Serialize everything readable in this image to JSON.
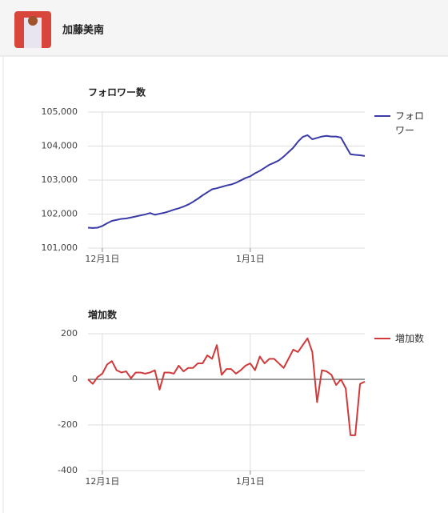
{
  "header": {
    "name": "加藤美南"
  },
  "chart_data": [
    {
      "type": "line",
      "title": "フォロワー数",
      "categories": [
        null,
        null,
        null,
        "12月1日",
        null,
        null,
        null,
        null,
        null,
        null,
        null,
        null,
        null,
        null,
        null,
        null,
        null,
        null,
        null,
        null,
        null,
        null,
        null,
        null,
        null,
        null,
        null,
        null,
        null,
        null,
        null,
        null,
        null,
        null,
        "1月1日",
        null,
        null,
        null,
        null,
        null,
        null,
        null,
        null,
        null,
        null,
        null,
        null,
        null,
        null,
        null,
        null,
        null,
        null,
        null,
        null,
        null,
        null,
        null,
        null
      ],
      "series": [
        {
          "name": "フォロワー",
          "color": "#3a3aa8",
          "values": [
            101600,
            101590,
            101600,
            101650,
            101730,
            101800,
            101830,
            101860,
            101870,
            101900,
            101930,
            101960,
            101990,
            102030,
            101980,
            102010,
            102040,
            102080,
            102130,
            102170,
            102220,
            102280,
            102360,
            102450,
            102550,
            102640,
            102730,
            102760,
            102800,
            102840,
            102870,
            102920,
            102990,
            103060,
            103110,
            103200,
            103270,
            103360,
            103450,
            103510,
            103580,
            103690,
            103820,
            103950,
            104130,
            104270,
            104320,
            104200,
            104240,
            104280,
            104300,
            104280,
            104280,
            104250,
            104000,
            103760,
            103740,
            103730,
            103710
          ]
        }
      ],
      "ylim": [
        101000,
        105000
      ],
      "yticks": [
        {
          "value": 101000,
          "label": "101,000"
        },
        {
          "value": 102000,
          "label": "102,000"
        },
        {
          "value": 103000,
          "label": "103,000"
        },
        {
          "value": 104000,
          "label": "104,000"
        },
        {
          "value": 105000,
          "label": "105,000"
        }
      ],
      "grid": true
    },
    {
      "type": "line",
      "title": "増加数",
      "categories": [
        null,
        null,
        null,
        "12月1日",
        null,
        null,
        null,
        null,
        null,
        null,
        null,
        null,
        null,
        null,
        null,
        null,
        null,
        null,
        null,
        null,
        null,
        null,
        null,
        null,
        null,
        null,
        null,
        null,
        null,
        null,
        null,
        null,
        null,
        null,
        "1月1日",
        null,
        null,
        null,
        null,
        null,
        null,
        null,
        null,
        null,
        null,
        null,
        null,
        null,
        null,
        null,
        null,
        null,
        null,
        null,
        null,
        null,
        null,
        null,
        null
      ],
      "series": [
        {
          "name": "増加数",
          "color": "#d03a3a",
          "values": [
            0,
            -20,
            10,
            25,
            65,
            80,
            40,
            30,
            35,
            5,
            30,
            30,
            25,
            30,
            40,
            -45,
            30,
            30,
            25,
            60,
            35,
            50,
            50,
            70,
            70,
            105,
            90,
            150,
            20,
            45,
            45,
            25,
            40,
            60,
            70,
            40,
            100,
            70,
            90,
            90,
            70,
            50,
            90,
            130,
            120,
            150,
            180,
            120,
            -100,
            40,
            35,
            20,
            -25,
            0,
            -40,
            -245,
            -245,
            -20,
            -10
          ]
        }
      ],
      "ylim": [
        -400,
        200
      ],
      "yticks": [
        -400,
        -200,
        0,
        200
      ],
      "grid": true
    }
  ]
}
